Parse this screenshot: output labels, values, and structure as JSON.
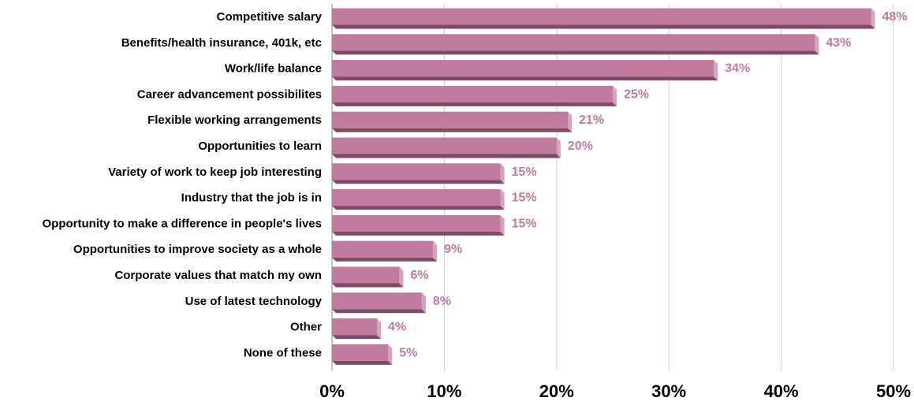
{
  "chart_data": {
    "type": "bar",
    "orientation": "horizontal",
    "categories": [
      "Competitive salary",
      "Benefits/health insurance, 401k, etc",
      "Work/life balance",
      "Career advancement possibilites",
      "Flexible working arrangements",
      "Opportunities to learn",
      "Variety of work to keep job interesting",
      "Industry that the job is in",
      "Opportunity to make a difference in people's lives",
      "Opportunities to improve society as a whole",
      "Corporate values that match my own",
      "Use of latest technology",
      "Other",
      "None of these"
    ],
    "values": [
      48,
      43,
      34,
      25,
      21,
      20,
      15,
      15,
      15,
      9,
      6,
      8,
      4,
      5
    ],
    "value_labels": [
      "48%",
      "43%",
      "34%",
      "25%",
      "21%",
      "20%",
      "15%",
      "15%",
      "15%",
      "9%",
      "6%",
      "8%",
      "4%",
      "5%"
    ],
    "xlim": [
      0,
      50
    ],
    "x_ticks": [
      0,
      10,
      20,
      30,
      40,
      50
    ],
    "x_tick_labels": [
      "0%",
      "10%",
      "20%",
      "30%",
      "40%",
      "50%"
    ],
    "grid": "vertical",
    "legend": "none",
    "bar_style": "3d",
    "colors": {
      "bar_front": "#c27ba0",
      "bar_bottom": "#7e4a65",
      "bar_side": "#d4a3bd",
      "value_label": "#c27ba0",
      "gridline": "#d0d0d0",
      "axis": "#888888"
    }
  }
}
